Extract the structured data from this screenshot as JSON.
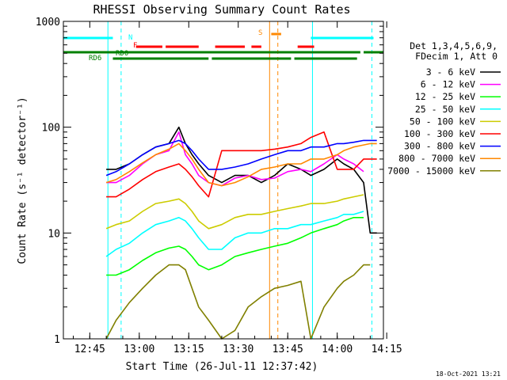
{
  "chart_data": {
    "type": "line",
    "title": "RHESSI Observing Summary Count Rates",
    "xlabel": "Start Time (26-Jul-11 12:37:42)",
    "ylabel": "Count Rate (s⁻¹ detector⁻¹)",
    "yscale": "log",
    "ylim": [
      1,
      1000
    ],
    "xlim_minutes_after_1237": [
      0,
      97
    ],
    "x_ticks": [
      "12:45",
      "13:00",
      "13:15",
      "13:30",
      "13:45",
      "14:00",
      "14:15"
    ],
    "y_ticks": [
      "1",
      "10",
      "100",
      "1000"
    ],
    "grid": false,
    "legend_position": "right",
    "legend_header": [
      "Det 1,3,4,5,6,9,",
      "FDecim 1, Att 0"
    ],
    "timestamp": "18-Oct-2021 13:21",
    "x_minutes": [
      13,
      16,
      20,
      24,
      28,
      32,
      35,
      37,
      39,
      41,
      44,
      48,
      52,
      56,
      60,
      64,
      68,
      72,
      75,
      79,
      83,
      85,
      88,
      91,
      93,
      95
    ],
    "series": [
      {
        "name": "3 - 6 keV",
        "color": "#000000",
        "values": [
          40,
          40,
          45,
          55,
          65,
          70,
          100,
          70,
          55,
          45,
          35,
          30,
          35,
          35,
          30,
          35,
          45,
          40,
          35,
          40,
          50,
          45,
          40,
          30,
          10,
          10
        ]
      },
      {
        "name": "6 - 12 keV",
        "color": "#ff00ff",
        "values": [
          30,
          30,
          35,
          45,
          55,
          60,
          90,
          55,
          45,
          35,
          30,
          28,
          33,
          35,
          32,
          33,
          38,
          40,
          38,
          45,
          55,
          50,
          45,
          38,
          null,
          null
        ]
      },
      {
        "name": "12 - 25 keV",
        "color": "#00ff00",
        "values": [
          4,
          4,
          4.5,
          5.5,
          6.5,
          7.2,
          7.5,
          7,
          6,
          5,
          4.5,
          5,
          6,
          6.5,
          7,
          7.5,
          8,
          9,
          10,
          11,
          12,
          13,
          14,
          14,
          null,
          null
        ]
      },
      {
        "name": "25 - 50 keV",
        "color": "#00ffff",
        "values": [
          6,
          7,
          8,
          10,
          12,
          13,
          14,
          13,
          11,
          9,
          7,
          7,
          9,
          10,
          10,
          11,
          11,
          12,
          12,
          13,
          14,
          15,
          15,
          16,
          null,
          null
        ]
      },
      {
        "name": "50 - 100 keV",
        "color": "#cccc00",
        "values": [
          11,
          12,
          13,
          16,
          19,
          20,
          21,
          19,
          16,
          13,
          11,
          12,
          14,
          15,
          15,
          16,
          17,
          18,
          19,
          19,
          20,
          21,
          22,
          23,
          null,
          null
        ]
      },
      {
        "name": "100 - 300 keV",
        "color": "#ff0000",
        "values": [
          22,
          22,
          26,
          32,
          38,
          42,
          45,
          40,
          34,
          28,
          22,
          60,
          60,
          60,
          60,
          62,
          65,
          70,
          80,
          90,
          40,
          40,
          40,
          50,
          50,
          50
        ]
      },
      {
        "name": "300 - 800 keV",
        "color": "#0000ff",
        "values": [
          35,
          38,
          45,
          55,
          65,
          70,
          75,
          70,
          60,
          50,
          40,
          40,
          42,
          45,
          50,
          55,
          60,
          60,
          65,
          65,
          70,
          70,
          72,
          75,
          75,
          75
        ]
      },
      {
        "name": "800 - 7000 keV",
        "color": "#ff8800",
        "values": [
          30,
          32,
          38,
          46,
          55,
          62,
          70,
          60,
          50,
          40,
          30,
          28,
          30,
          34,
          40,
          42,
          45,
          45,
          50,
          50,
          55,
          60,
          65,
          68,
          70,
          70
        ]
      },
      {
        "name": "7000 - 15000 keV",
        "color": "#808000",
        "values": [
          1,
          1.5,
          2.2,
          3,
          4,
          5,
          5,
          4.5,
          3,
          2,
          1.5,
          1,
          1.2,
          2,
          2.5,
          3,
          3.2,
          3.5,
          1,
          2,
          3,
          3.5,
          4,
          5,
          5,
          null
        ]
      }
    ],
    "bars": [
      {
        "label": "N",
        "color": "#00ffff",
        "segments": [
          [
            0,
            15
          ],
          [
            75,
            94
          ]
        ]
      },
      {
        "label": "F",
        "color": "#ff0000",
        "segments": [
          [
            22,
            30
          ],
          [
            31,
            41
          ],
          [
            46,
            55
          ],
          [
            57,
            60
          ],
          [
            71,
            76
          ]
        ]
      },
      {
        "label": "S",
        "color": "#ff8800",
        "segments": [
          [
            63,
            66
          ]
        ]
      },
      {
        "label": "RD0",
        "color": "#008000",
        "segments": [
          [
            0,
            90
          ],
          [
            91,
            97
          ]
        ]
      },
      {
        "label": "RD6",
        "color": "#008000",
        "segments": [
          [
            15,
            44
          ],
          [
            45,
            69
          ],
          [
            70,
            89
          ]
        ]
      }
    ],
    "vlines": [
      {
        "x": 13.5,
        "color": "#00ffff",
        "style": "solid"
      },
      {
        "x": 17.5,
        "color": "#00ffff",
        "style": "dashed"
      },
      {
        "x": 62.5,
        "color": "#ff8800",
        "style": "solid"
      },
      {
        "x": 65,
        "color": "#ff8800",
        "style": "dashed"
      },
      {
        "x": 75.5,
        "color": "#00ffff",
        "style": "solid"
      },
      {
        "x": 93.5,
        "color": "#00ffff",
        "style": "dashed"
      }
    ]
  }
}
